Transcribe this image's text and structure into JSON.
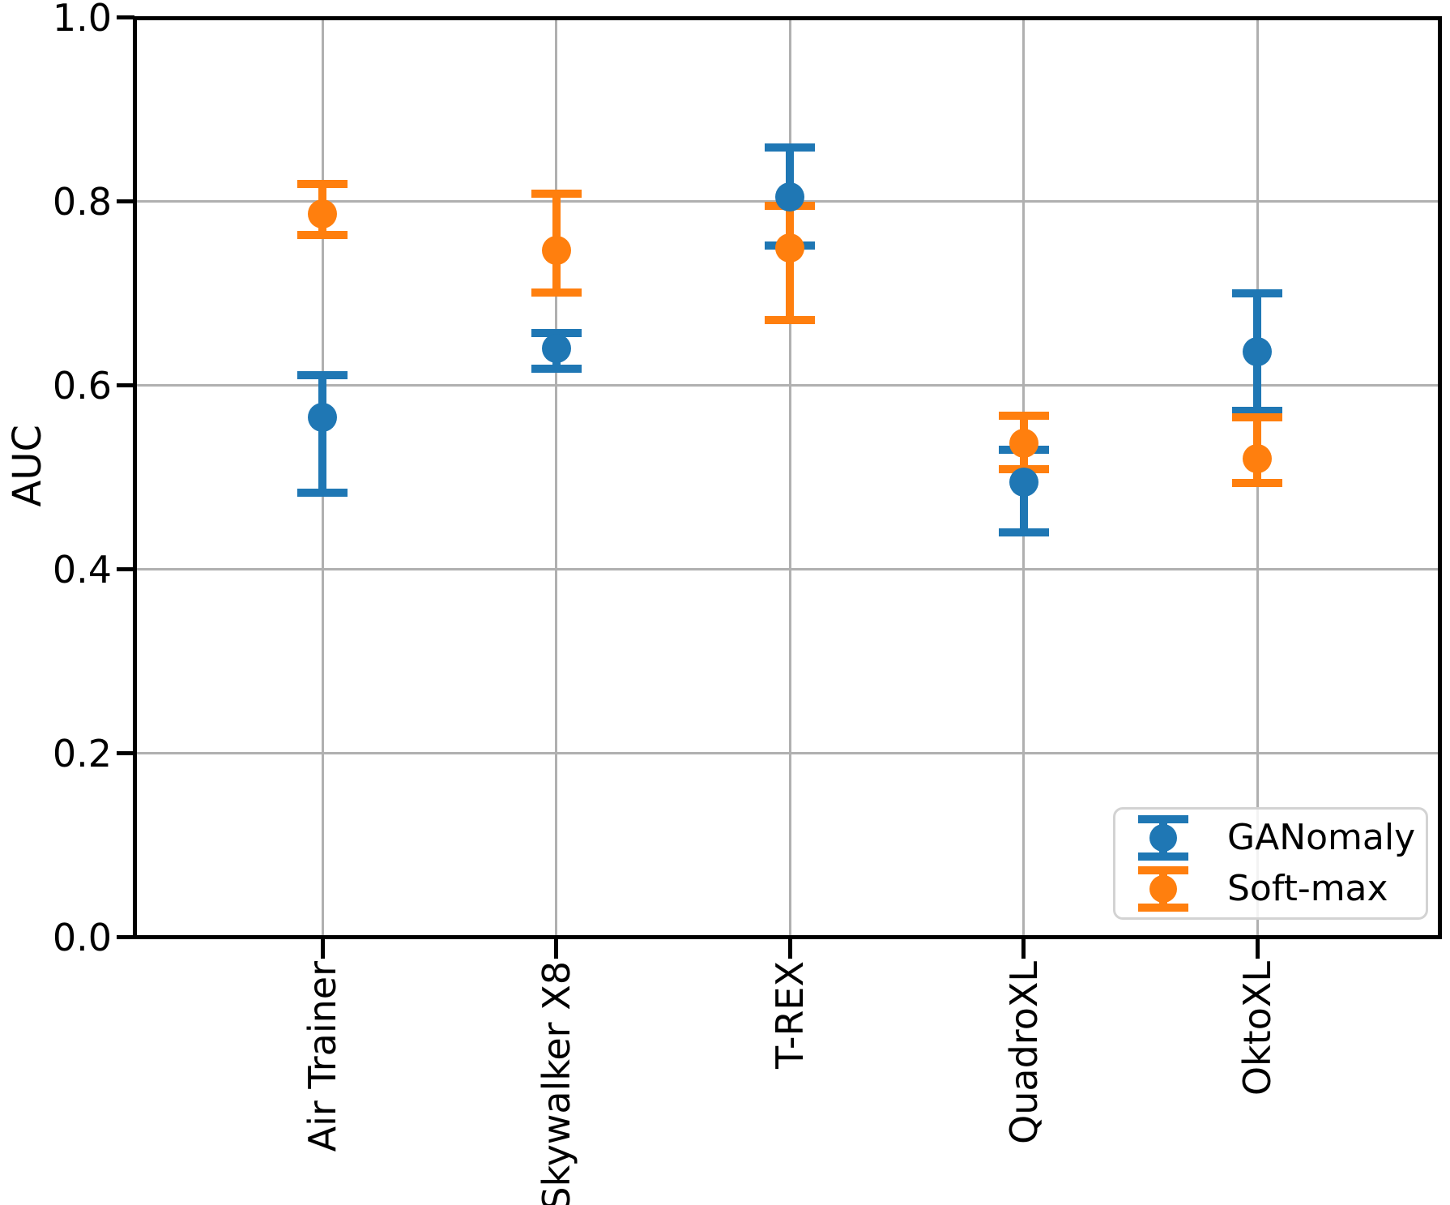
{
  "chart_data": {
    "type": "scatter",
    "subtype": "errorbar",
    "title": "",
    "xlabel": "",
    "ylabel": "AUC",
    "categories": [
      "Air Trainer",
      "Skywalker X8",
      "T-REX",
      "QuadroXL",
      "OktoXL"
    ],
    "series": [
      {
        "name": "GANomaly",
        "color": "#1f77b4",
        "points": [
          {
            "category": "Air Trainer",
            "value": 0.565,
            "upper": 0.611,
            "lower": 0.483
          },
          {
            "category": "Skywalker X8",
            "value": 0.64,
            "upper": 0.657,
            "lower": 0.618
          },
          {
            "category": "T-REX",
            "value": 0.805,
            "upper": 0.859,
            "lower": 0.752
          },
          {
            "category": "QuadroXL",
            "value": 0.495,
            "upper": 0.53,
            "lower": 0.44
          },
          {
            "category": "OktoXL",
            "value": 0.637,
            "upper": 0.7,
            "lower": 0.572
          }
        ]
      },
      {
        "name": "Soft-max",
        "color": "#ff7f0e",
        "points": [
          {
            "category": "Air Trainer",
            "value": 0.786,
            "upper": 0.819,
            "lower": 0.763
          },
          {
            "category": "Skywalker X8",
            "value": 0.747,
            "upper": 0.808,
            "lower": 0.701
          },
          {
            "category": "T-REX",
            "value": 0.749,
            "upper": 0.795,
            "lower": 0.671
          },
          {
            "category": "QuadroXL",
            "value": 0.537,
            "upper": 0.567,
            "lower": 0.509
          },
          {
            "category": "OktoXL",
            "value": 0.52,
            "upper": 0.565,
            "lower": 0.494
          }
        ]
      }
    ],
    "y_axis": {
      "min": 0.0,
      "max": 1.0,
      "tick_labels": [
        "0.0",
        "0.2",
        "0.4",
        "0.6",
        "0.8",
        "1.0"
      ],
      "tick_values": [
        0.0,
        0.2,
        0.4,
        0.6,
        0.8,
        1.0
      ],
      "gridline_values": [
        0.2,
        0.4,
        0.6,
        0.8
      ]
    },
    "grid": true,
    "legend": {
      "position": "lower right",
      "entries": [
        "GANomaly",
        "Soft-max"
      ]
    },
    "colors": {
      "grid": "#b0b0b0",
      "axis": "#000000",
      "text": "#000000",
      "legend_border": "#d3d3d3"
    }
  }
}
